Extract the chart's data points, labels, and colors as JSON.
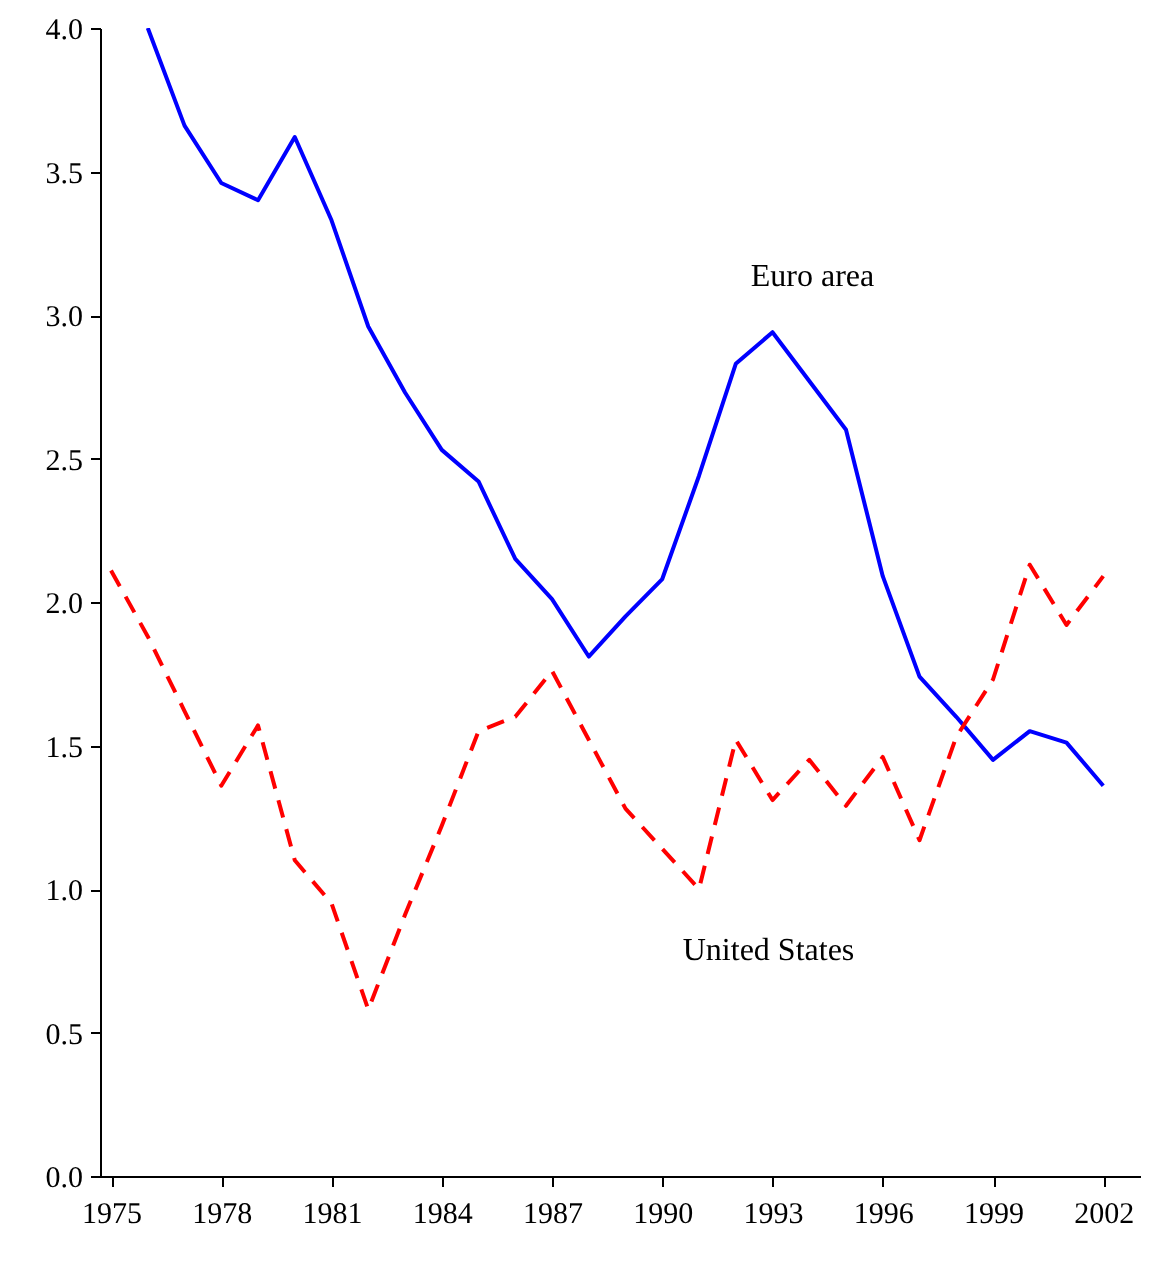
{
  "chart_data": {
    "type": "line",
    "x": [
      1975,
      1976,
      1977,
      1978,
      1979,
      1980,
      1981,
      1982,
      1983,
      1984,
      1985,
      1986,
      1987,
      1988,
      1989,
      1990,
      1991,
      1992,
      1993,
      1994,
      1995,
      1996,
      1997,
      1998,
      1999,
      2000,
      2001,
      2002
    ],
    "series": [
      {
        "name": "Euro area",
        "color": "#0000ff",
        "line_style": "solid",
        "values": [
          null,
          4.0,
          3.66,
          3.46,
          3.4,
          3.62,
          3.33,
          2.96,
          2.73,
          2.53,
          2.42,
          2.15,
          2.01,
          1.81,
          1.95,
          2.08,
          2.44,
          2.83,
          2.94,
          2.77,
          2.6,
          2.09,
          1.74,
          1.6,
          1.45,
          1.55,
          1.51,
          1.36
        ]
      },
      {
        "name": "United States",
        "color": "#ff0000",
        "line_style": "dashed",
        "values": [
          2.11,
          1.88,
          1.62,
          1.36,
          1.57,
          1.1,
          0.95,
          0.58,
          0.91,
          1.22,
          1.55,
          1.6,
          1.76,
          1.52,
          1.28,
          1.14,
          1.0,
          1.52,
          1.31,
          1.45,
          1.29,
          1.46,
          1.17,
          1.53,
          1.73,
          2.13,
          1.92,
          2.09
        ]
      }
    ],
    "xlim": [
      1974.7,
      2003
    ],
    "xticks": [
      1975,
      1978,
      1981,
      1984,
      1987,
      1990,
      1993,
      1996,
      1999,
      2002
    ],
    "ylim": [
      0,
      4
    ],
    "yticks": [
      {
        "value": 0,
        "label": "0.0"
      },
      {
        "value": 0.5,
        "label": "0.5"
      },
      {
        "value": 1,
        "label": "1.0"
      },
      {
        "value": 1.5,
        "label": "1.5"
      },
      {
        "value": 2,
        "label": "2.0"
      },
      {
        "value": 2.5,
        "label": "2.5"
      },
      {
        "value": 3,
        "label": "3.0"
      },
      {
        "value": 3.5,
        "label": "3.5"
      },
      {
        "value": 4,
        "label": "4.0"
      }
    ],
    "grid": false
  }
}
